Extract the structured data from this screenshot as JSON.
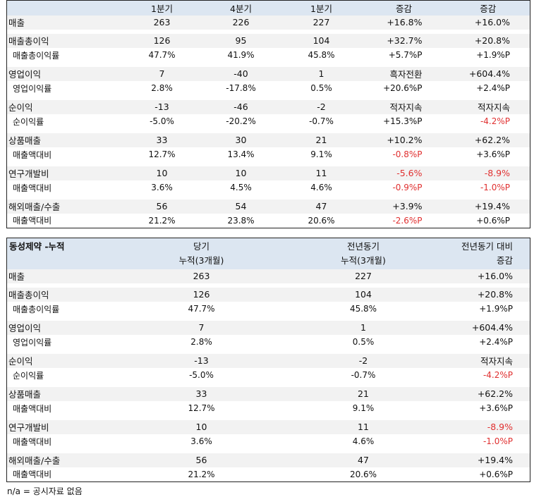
{
  "table1": {
    "headers": [
      "1분기",
      "4분기",
      "1분기",
      "증감",
      "증감"
    ],
    "groups": [
      {
        "main": [
          "매출",
          "263",
          "226",
          "227",
          "+16.8%",
          "+16.0%"
        ],
        "sub": null
      },
      {
        "main": [
          "매출총이익",
          "126",
          "95",
          "104",
          "+32.7%",
          "+20.8%"
        ],
        "sub": [
          "매출총이익률",
          "47.7%",
          "41.9%",
          "45.8%",
          "+5.7%P",
          "+1.9%P"
        ]
      },
      {
        "main": [
          "영업이익",
          "7",
          "-40",
          "1",
          "흑자전환",
          "+604.4%"
        ],
        "sub": [
          "영업이익률",
          "2.8%",
          "-17.8%",
          "0.5%",
          "+20.6%P",
          "+2.4%P"
        ]
      },
      {
        "main": [
          "순이익",
          "-13",
          "-46",
          "-2",
          "적자지속",
          "적자지속"
        ],
        "sub": [
          "순이익률",
          "-5.0%",
          "-20.2%",
          "-0.7%",
          "+15.3%P",
          "-4.2%P"
        ]
      },
      {
        "main": [
          "상품매출",
          "33",
          "30",
          "21",
          "+10.2%",
          "+62.2%"
        ],
        "sub": [
          "매출액대비",
          "12.7%",
          "13.4%",
          "9.1%",
          "-0.8%P",
          "+3.6%P"
        ]
      },
      {
        "main": [
          "연구개발비",
          "10",
          "10",
          "11",
          "-5.6%",
          "-8.9%"
        ],
        "sub": [
          "매출액대비",
          "3.6%",
          "4.5%",
          "4.6%",
          "-0.9%P",
          "-1.0%P"
        ]
      },
      {
        "main": [
          "해외매출/수출",
          "56",
          "54",
          "47",
          "+3.9%",
          "+19.4%"
        ],
        "sub": [
          "매출액대비",
          "21.2%",
          "23.8%",
          "20.6%",
          "-2.6%P",
          "+0.6%P"
        ]
      }
    ]
  },
  "table2": {
    "title": "동성제약 -누적",
    "col1": [
      "당기",
      "누적(3개월)"
    ],
    "col2": [
      "전년동기",
      "누적(3개월)"
    ],
    "col3": [
      "전년동기 대비",
      "증감"
    ],
    "groups": [
      {
        "main": [
          "매출",
          "263",
          "227",
          "+16.0%"
        ],
        "sub": null
      },
      {
        "main": [
          "매출총이익",
          "126",
          "104",
          "+20.8%"
        ],
        "sub": [
          "매출총이익률",
          "47.7%",
          "45.8%",
          "+1.9%P"
        ]
      },
      {
        "main": [
          "영업이익",
          "7",
          "1",
          "+604.4%"
        ],
        "sub": [
          "영업이익률",
          "2.8%",
          "0.5%",
          "+2.4%P"
        ]
      },
      {
        "main": [
          "순이익",
          "-13",
          "-2",
          "적자지속"
        ],
        "sub": [
          "순이익률",
          "-5.0%",
          "-0.7%",
          "-4.2%P"
        ]
      },
      {
        "main": [
          "상품매출",
          "33",
          "21",
          "+62.2%"
        ],
        "sub": [
          "매출액대비",
          "12.7%",
          "9.1%",
          "+3.6%P"
        ]
      },
      {
        "main": [
          "연구개발비",
          "10",
          "11",
          "-8.9%"
        ],
        "sub": [
          "매출액대비",
          "3.6%",
          "4.6%",
          "-1.0%P"
        ]
      },
      {
        "main": [
          "해외매출/수출",
          "56",
          "47",
          "+19.4%"
        ],
        "sub": [
          "매출액대비",
          "21.2%",
          "20.6%",
          "+0.6%P"
        ]
      }
    ]
  },
  "footnote": "n/a = 공시자료 없음",
  "colors": {
    "header_bg": "#dce6f1",
    "row_bg": "#f2f2f2",
    "negative": "#e03030",
    "border": "#222222"
  }
}
